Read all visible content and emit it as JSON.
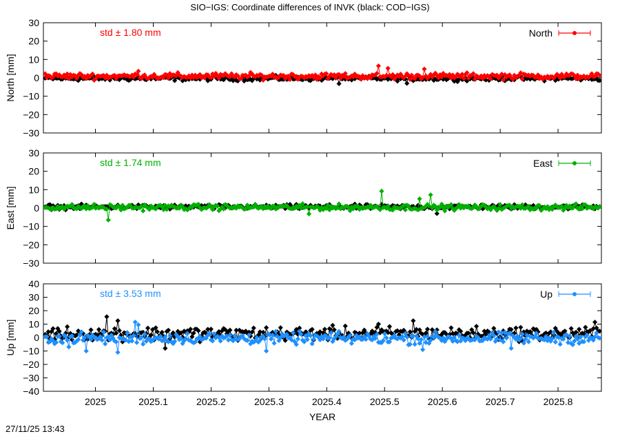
{
  "chart_data": {
    "type": "scatter",
    "title": "SIO−IGS: Coordinate differences of INVK (black: COD−IGS)",
    "xlabel": "YEAR",
    "xlim": [
      2024.91,
      2025.875
    ],
    "xticks": [
      2025,
      2025.1,
      2025.2,
      2025.3,
      2025.4,
      2025.5,
      2025.6,
      2025.7,
      2025.8
    ],
    "xtick_labels": [
      "2025",
      "2025.1",
      "2025.2",
      "2025.3",
      "2025.4",
      "2025.5",
      "2025.6",
      "2025.7",
      "2025.8"
    ],
    "timestamp": "27/11/25 13:43",
    "grid": false,
    "legend_position": "top-right",
    "panels": [
      {
        "id": "north",
        "ylabel": "North [mm]",
        "ylim": [
          -30,
          30
        ],
        "yticks": [
          -30,
          -20,
          -10,
          0,
          10,
          20,
          30
        ],
        "ytick_labels": [
          "−30",
          "−20",
          "−10",
          "0",
          "10",
          "20",
          "30"
        ],
        "std_label": "std ± 1.80 mm",
        "legend_label": "North",
        "color": "#ff0000",
        "amp": 1.2,
        "bias": 0.9,
        "ref_amp": 0.9,
        "ref_bias": -0.3,
        "spikes": [
          [
            2025.49,
            6.5
          ],
          [
            2025.505,
            5.2
          ],
          [
            2025.075,
            3.6
          ],
          [
            2025.57,
            4.8
          ]
        ],
        "ref_spikes": [
          [
            2025.42,
            -3.2
          ],
          [
            2025.54,
            -3.0
          ]
        ]
      },
      {
        "id": "east",
        "ylabel": "East [mm]",
        "ylim": [
          -30,
          30
        ],
        "yticks": [
          -30,
          -20,
          -10,
          0,
          10,
          20,
          30
        ],
        "ytick_labels": [
          "−30",
          "−20",
          "−10",
          "0",
          "10",
          "20",
          "30"
        ],
        "std_label": "std ± 1.74 mm",
        "legend_label": "East",
        "color": "#00b000",
        "amp": 1.1,
        "bias": 0.4,
        "ref_amp": 0.9,
        "ref_bias": 0.6,
        "spikes": [
          [
            2025.022,
            -6.5
          ],
          [
            2025.495,
            9.2
          ],
          [
            2025.58,
            7.2
          ],
          [
            2025.56,
            5.0
          ],
          [
            2025.37,
            -3.2
          ]
        ],
        "ref_spikes": [
          [
            2025.59,
            -3.0
          ]
        ]
      },
      {
        "id": "up",
        "ylabel": "Up [mm]",
        "ylim": [
          -40,
          40
        ],
        "yticks": [
          -40,
          -30,
          -20,
          -10,
          0,
          10,
          20,
          30,
          40
        ],
        "ytick_labels": [
          "−40",
          "−30",
          "−20",
          "−10",
          "0",
          "10",
          "20",
          "30",
          "40"
        ],
        "std_label": "std ± 3.53 mm",
        "legend_label": "Up",
        "color": "#1e90ff",
        "amp": 3.0,
        "bias": -0.5,
        "ref_amp": 3.5,
        "ref_bias": 3.0,
        "spikes": [
          [
            2024.985,
            -10
          ],
          [
            2025.04,
            -11
          ],
          [
            2025.07,
            11.5
          ],
          [
            2025.075,
            9.5
          ],
          [
            2025.295,
            -10
          ],
          [
            2025.565,
            -9
          ],
          [
            2025.72,
            -8
          ],
          [
            2024.955,
            -7
          ]
        ],
        "ref_spikes": [
          [
            2025.02,
            15.5
          ],
          [
            2025.04,
            12.5
          ],
          [
            2025.55,
            12.5
          ],
          [
            2025.865,
            11.5
          ],
          [
            2025.49,
            10
          ],
          [
            2025.12,
            -8
          ]
        ]
      }
    ]
  }
}
